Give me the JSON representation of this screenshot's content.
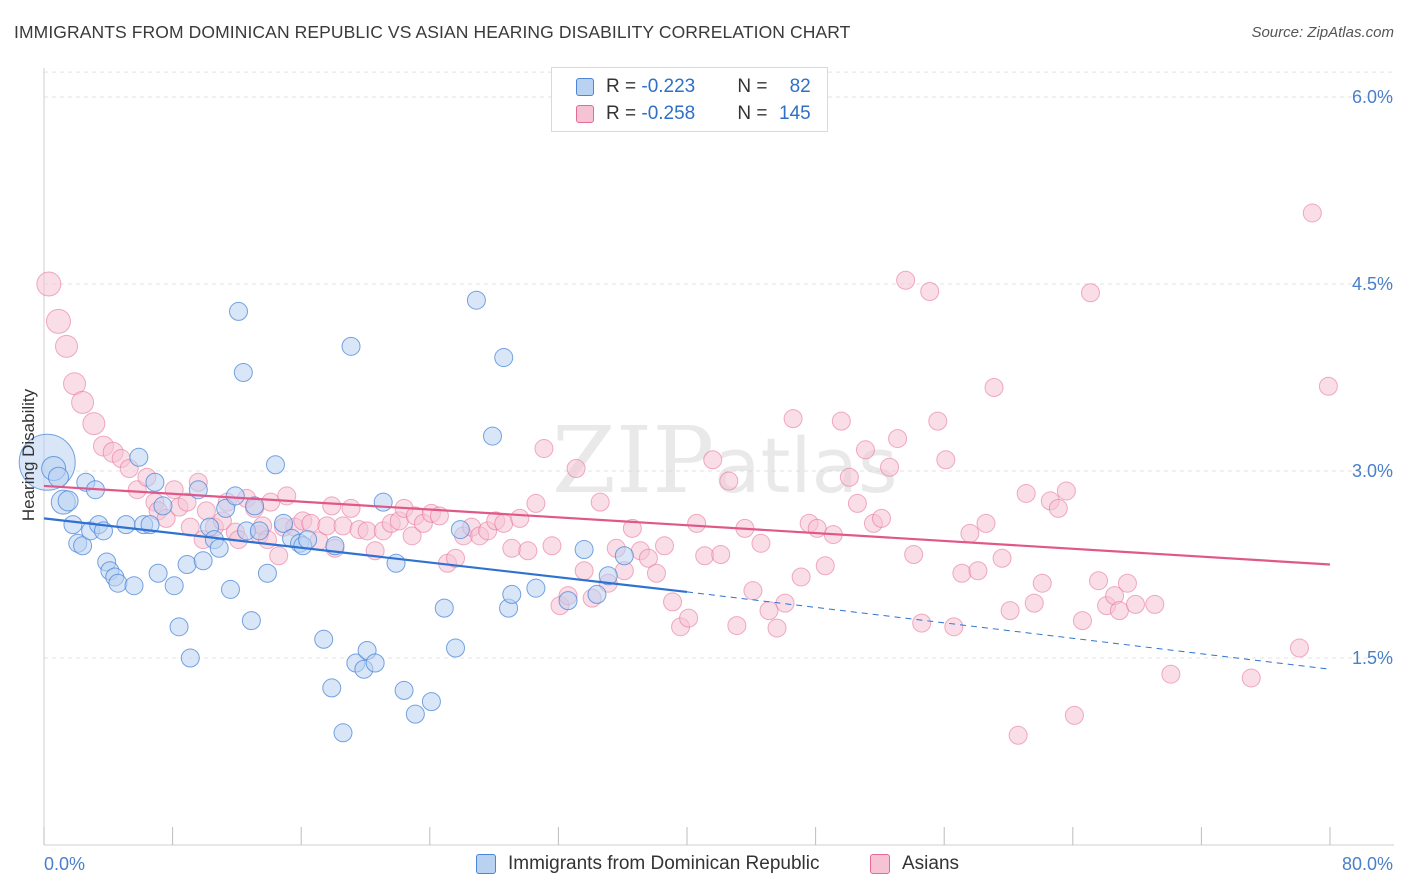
{
  "title": "IMMIGRANTS FROM DOMINICAN REPUBLIC VS ASIAN HEARING DISABILITY CORRELATION CHART",
  "source": "Source: ZipAtlas.com",
  "watermark": {
    "zip": "ZIP",
    "atlas": "atlas"
  },
  "legend": {
    "rows": [
      {
        "r_label": "R = ",
        "r_value": "-0.223",
        "n_label": "N = ",
        "n_value": "82"
      },
      {
        "r_label": "R = ",
        "r_value": "-0.258",
        "n_label": "N = ",
        "n_value": "145"
      }
    ]
  },
  "chart_data": {
    "type": "scatter",
    "title": "IMMIGRANTS FROM DOMINICAN REPUBLIC VS ASIAN HEARING DISABILITY CORRELATION CHART",
    "xlabel": "",
    "ylabel": "Hearing Disability",
    "xlim": [
      0,
      80
    ],
    "ylim": [
      0,
      6.3
    ],
    "x_tick_labels": [
      "0.0%",
      "80.0%"
    ],
    "y_ticks": [
      1.5,
      3.0,
      4.5,
      6.0
    ],
    "y_tick_labels": [
      "1.5%",
      "3.0%",
      "4.5%",
      "6.0%"
    ],
    "grid": true,
    "legend_position": "top-center",
    "colors": {
      "blue": "#4a86d8",
      "blue_fill": "#b9d2f2",
      "pink": "#e56b96",
      "pink_fill": "#f6c3d4"
    },
    "series": [
      {
        "name": "Immigrants from Dominican Republic",
        "color": "#4a86d8",
        "regression": {
          "x": [
            0,
            40
          ],
          "y": [
            2.62,
            2.03
          ],
          "dashed_to": [
            80,
            1.41
          ]
        },
        "points": [
          [
            0.2,
            3.07,
            28
          ],
          [
            0.6,
            3.02,
            12
          ],
          [
            0.9,
            2.95,
            10
          ],
          [
            1.2,
            2.75,
            12
          ],
          [
            1.5,
            2.76,
            10
          ],
          [
            1.8,
            2.57,
            9
          ],
          [
            2.1,
            2.42,
            9
          ],
          [
            2.4,
            2.4,
            9
          ],
          [
            2.6,
            2.91,
            9
          ],
          [
            2.9,
            2.52,
            9
          ],
          [
            3.2,
            2.85,
            9
          ],
          [
            3.4,
            2.57,
            9
          ],
          [
            3.7,
            2.52,
            9
          ],
          [
            3.9,
            2.27,
            9
          ],
          [
            4.1,
            2.2,
            9
          ],
          [
            4.4,
            2.15,
            9
          ],
          [
            4.6,
            2.1,
            9
          ],
          [
            5.1,
            2.57,
            9
          ],
          [
            5.6,
            2.08,
            9
          ],
          [
            5.9,
            3.11,
            9
          ],
          [
            6.2,
            2.57,
            9
          ],
          [
            6.6,
            2.57,
            9
          ],
          [
            6.9,
            2.91,
            9
          ],
          [
            7.1,
            2.18,
            9
          ],
          [
            7.4,
            2.72,
            9
          ],
          [
            8.1,
            2.08,
            9
          ],
          [
            8.4,
            1.75,
            9
          ],
          [
            8.9,
            2.25,
            9
          ],
          [
            9.1,
            1.5,
            9
          ],
          [
            9.6,
            2.85,
            9
          ],
          [
            9.9,
            2.28,
            9
          ],
          [
            10.3,
            2.55,
            9
          ],
          [
            10.6,
            2.45,
            9
          ],
          [
            10.9,
            2.38,
            9
          ],
          [
            11.3,
            2.7,
            9
          ],
          [
            11.6,
            2.05,
            9
          ],
          [
            11.9,
            2.8,
            9
          ],
          [
            12.1,
            4.28,
            9
          ],
          [
            12.4,
            3.79,
            9
          ],
          [
            12.6,
            2.52,
            9
          ],
          [
            12.9,
            1.8,
            9
          ],
          [
            13.1,
            2.72,
            9
          ],
          [
            13.4,
            2.52,
            9
          ],
          [
            13.9,
            2.18,
            9
          ],
          [
            14.4,
            3.05,
            9
          ],
          [
            14.9,
            2.58,
            9
          ],
          [
            15.4,
            2.46,
            9
          ],
          [
            15.9,
            2.42,
            9
          ],
          [
            16.1,
            2.4,
            9
          ],
          [
            16.4,
            2.45,
            9
          ],
          [
            17.4,
            1.65,
            9
          ],
          [
            17.9,
            1.26,
            9
          ],
          [
            18.1,
            2.4,
            9
          ],
          [
            18.6,
            0.9,
            9
          ],
          [
            19.1,
            4.0,
            9
          ],
          [
            19.4,
            1.46,
            9
          ],
          [
            19.9,
            1.41,
            9
          ],
          [
            20.1,
            1.56,
            9
          ],
          [
            20.6,
            1.46,
            9
          ],
          [
            21.1,
            2.75,
            9
          ],
          [
            21.9,
            2.26,
            9
          ],
          [
            22.4,
            1.24,
            9
          ],
          [
            23.1,
            1.05,
            9
          ],
          [
            24.1,
            1.15,
            9
          ],
          [
            24.9,
            1.9,
            9
          ],
          [
            25.6,
            1.58,
            9
          ],
          [
            25.9,
            2.53,
            9
          ],
          [
            26.9,
            4.37,
            9
          ],
          [
            27.9,
            3.28,
            9
          ],
          [
            28.6,
            3.91,
            9
          ],
          [
            28.9,
            1.9,
            9
          ],
          [
            29.1,
            2.01,
            9
          ],
          [
            30.6,
            2.06,
            9
          ],
          [
            32.6,
            1.96,
            9
          ],
          [
            33.6,
            2.37,
            9
          ],
          [
            34.4,
            2.01,
            9
          ],
          [
            35.1,
            2.16,
            9
          ],
          [
            36.1,
            2.32,
            9
          ]
        ]
      },
      {
        "name": "Asians",
        "color": "#e56b96",
        "regression": {
          "x": [
            0,
            80
          ],
          "y": [
            2.88,
            2.25
          ]
        },
        "points": [
          [
            0.3,
            4.5,
            12
          ],
          [
            0.9,
            4.2,
            12
          ],
          [
            1.4,
            4.0,
            11
          ],
          [
            1.9,
            3.7,
            11
          ],
          [
            2.4,
            3.55,
            11
          ],
          [
            3.1,
            3.38,
            11
          ],
          [
            3.7,
            3.2,
            10
          ],
          [
            4.3,
            3.15,
            10
          ],
          [
            4.8,
            3.1,
            9
          ],
          [
            5.3,
            3.02,
            9
          ],
          [
            5.8,
            2.85,
            9
          ],
          [
            6.4,
            2.95,
            9
          ],
          [
            6.9,
            2.75,
            9
          ],
          [
            7.1,
            2.68,
            9
          ],
          [
            7.6,
            2.62,
            9
          ],
          [
            8.1,
            2.85,
            9
          ],
          [
            8.4,
            2.71,
            9
          ],
          [
            8.9,
            2.75,
            9
          ],
          [
            9.1,
            2.55,
            9
          ],
          [
            9.6,
            2.91,
            9
          ],
          [
            9.9,
            2.45,
            9
          ],
          [
            10.1,
            2.68,
            9
          ],
          [
            10.6,
            2.55,
            9
          ],
          [
            11.1,
            2.6,
            9
          ],
          [
            11.4,
            2.75,
            9
          ],
          [
            11.9,
            2.51,
            9
          ],
          [
            12.1,
            2.45,
            9
          ],
          [
            12.6,
            2.78,
            9
          ],
          [
            13.1,
            2.7,
            9
          ],
          [
            13.4,
            2.49,
            9
          ],
          [
            13.6,
            2.56,
            9
          ],
          [
            13.9,
            2.45,
            9
          ],
          [
            14.1,
            2.75,
            9
          ],
          [
            14.6,
            2.32,
            9
          ],
          [
            14.9,
            2.55,
            9
          ],
          [
            15.1,
            2.8,
            9
          ],
          [
            15.6,
            2.55,
            9
          ],
          [
            16.1,
            2.6,
            9
          ],
          [
            16.6,
            2.58,
            9
          ],
          [
            17.1,
            2.44,
            9
          ],
          [
            17.6,
            2.56,
            9
          ],
          [
            17.9,
            2.72,
            9
          ],
          [
            18.1,
            2.38,
            9
          ],
          [
            18.6,
            2.56,
            9
          ],
          [
            19.1,
            2.7,
            9
          ],
          [
            19.6,
            2.53,
            9
          ],
          [
            20.1,
            2.52,
            9
          ],
          [
            20.6,
            2.36,
            9
          ],
          [
            21.1,
            2.52,
            9
          ],
          [
            21.6,
            2.58,
            9
          ],
          [
            22.1,
            2.6,
            9
          ],
          [
            22.4,
            2.7,
            9
          ],
          [
            22.9,
            2.48,
            9
          ],
          [
            23.1,
            2.64,
            9
          ],
          [
            23.6,
            2.58,
            9
          ],
          [
            24.1,
            2.66,
            9
          ],
          [
            24.6,
            2.64,
            9
          ],
          [
            25.1,
            2.26,
            9
          ],
          [
            25.6,
            2.3,
            9
          ],
          [
            26.1,
            2.48,
            9
          ],
          [
            26.6,
            2.55,
            9
          ],
          [
            27.1,
            2.48,
            9
          ],
          [
            27.6,
            2.52,
            9
          ],
          [
            28.1,
            2.6,
            9
          ],
          [
            28.6,
            2.58,
            9
          ],
          [
            29.1,
            2.38,
            9
          ],
          [
            29.6,
            2.62,
            9
          ],
          [
            30.1,
            2.36,
            9
          ],
          [
            30.6,
            2.74,
            9
          ],
          [
            31.1,
            3.18,
            9
          ],
          [
            31.6,
            2.4,
            9
          ],
          [
            32.1,
            1.92,
            9
          ],
          [
            32.6,
            2.0,
            9
          ],
          [
            33.1,
            3.02,
            9
          ],
          [
            33.6,
            2.2,
            9
          ],
          [
            34.1,
            1.98,
            9
          ],
          [
            34.6,
            2.75,
            9
          ],
          [
            35.1,
            2.1,
            9
          ],
          [
            35.6,
            2.38,
            9
          ],
          [
            36.1,
            2.2,
            9
          ],
          [
            36.6,
            2.54,
            9
          ],
          [
            37.1,
            2.36,
            9
          ],
          [
            37.6,
            2.3,
            9
          ],
          [
            38.1,
            2.18,
            9
          ],
          [
            38.6,
            2.4,
            9
          ],
          [
            39.1,
            1.95,
            9
          ],
          [
            39.6,
            1.75,
            9
          ],
          [
            40.1,
            1.82,
            9
          ],
          [
            40.6,
            2.58,
            9
          ],
          [
            41.1,
            2.32,
            9
          ],
          [
            41.6,
            3.09,
            9
          ],
          [
            42.1,
            2.33,
            9
          ],
          [
            42.6,
            2.92,
            9
          ],
          [
            43.1,
            1.76,
            9
          ],
          [
            43.6,
            2.54,
            9
          ],
          [
            44.1,
            2.04,
            9
          ],
          [
            44.6,
            2.42,
            9
          ],
          [
            45.1,
            1.88,
            9
          ],
          [
            45.6,
            1.74,
            9
          ],
          [
            46.1,
            1.94,
            9
          ],
          [
            46.6,
            3.42,
            9
          ],
          [
            47.1,
            2.15,
            9
          ],
          [
            47.6,
            2.58,
            9
          ],
          [
            48.1,
            2.54,
            9
          ],
          [
            48.6,
            2.24,
            9
          ],
          [
            49.1,
            2.49,
            9
          ],
          [
            49.6,
            3.4,
            9
          ],
          [
            50.1,
            2.95,
            9
          ],
          [
            50.6,
            2.74,
            9
          ],
          [
            51.1,
            3.17,
            9
          ],
          [
            51.6,
            2.58,
            9
          ],
          [
            52.1,
            2.62,
            9
          ],
          [
            52.6,
            3.03,
            9
          ],
          [
            53.1,
            3.26,
            9
          ],
          [
            53.6,
            4.53,
            9
          ],
          [
            54.1,
            2.33,
            9
          ],
          [
            54.6,
            1.78,
            9
          ],
          [
            55.1,
            4.44,
            9
          ],
          [
            55.6,
            3.4,
            9
          ],
          [
            56.1,
            3.09,
            9
          ],
          [
            56.6,
            1.75,
            9
          ],
          [
            57.1,
            2.18,
            9
          ],
          [
            57.6,
            2.5,
            9
          ],
          [
            58.1,
            2.2,
            9
          ],
          [
            58.6,
            2.58,
            9
          ],
          [
            59.1,
            3.67,
            9
          ],
          [
            59.6,
            2.3,
            9
          ],
          [
            60.1,
            1.88,
            9
          ],
          [
            60.6,
            0.88,
            9
          ],
          [
            61.1,
            2.82,
            9
          ],
          [
            61.6,
            1.94,
            9
          ],
          [
            62.1,
            2.1,
            9
          ],
          [
            62.6,
            2.76,
            9
          ],
          [
            63.1,
            2.7,
            9
          ],
          [
            63.6,
            2.84,
            9
          ],
          [
            64.1,
            1.04,
            9
          ],
          [
            64.6,
            1.8,
            9
          ],
          [
            65.1,
            4.43,
            9
          ],
          [
            65.6,
            2.12,
            9
          ],
          [
            66.1,
            1.92,
            9
          ],
          [
            66.6,
            2.0,
            9
          ],
          [
            66.9,
            1.88,
            9
          ],
          [
            67.4,
            2.1,
            9
          ],
          [
            67.9,
            1.93,
            9
          ],
          [
            69.1,
            1.93,
            9
          ],
          [
            70.1,
            1.37,
            9
          ],
          [
            75.1,
            1.34,
            9
          ],
          [
            78.1,
            1.58,
            9
          ],
          [
            78.9,
            5.07,
            9
          ],
          [
            79.9,
            3.68,
            9
          ]
        ]
      }
    ]
  }
}
